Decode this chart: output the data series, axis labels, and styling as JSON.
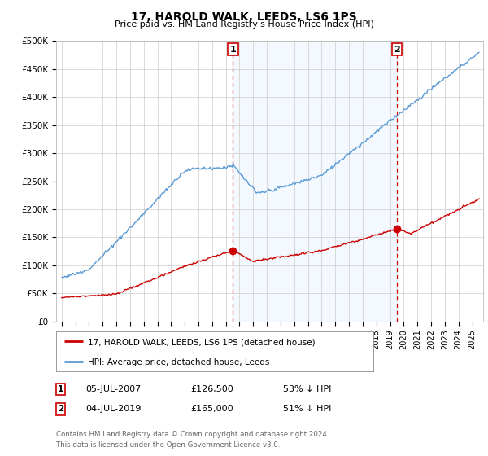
{
  "title": "17, HAROLD WALK, LEEDS, LS6 1PS",
  "subtitle": "Price paid vs. HM Land Registry's House Price Index (HPI)",
  "ylim": [
    0,
    500000
  ],
  "yticks": [
    0,
    50000,
    100000,
    150000,
    200000,
    250000,
    300000,
    350000,
    400000,
    450000,
    500000
  ],
  "ytick_labels": [
    "£0",
    "£50K",
    "£100K",
    "£150K",
    "£200K",
    "£250K",
    "£300K",
    "£350K",
    "£400K",
    "£450K",
    "£500K"
  ],
  "xlim_start": 1994.6,
  "xlim_end": 2025.8,
  "marker1_x": 2007.52,
  "marker1_y": 126500,
  "marker2_x": 2019.51,
  "marker2_y": 165000,
  "marker1_label": "1",
  "marker2_label": "2",
  "sale1_date": "05-JUL-2007",
  "sale1_price": "£126,500",
  "sale1_note": "53% ↓ HPI",
  "sale2_date": "04-JUL-2019",
  "sale2_price": "£165,000",
  "sale2_note": "51% ↓ HPI",
  "legend_line1": "17, HAROLD WALK, LEEDS, LS6 1PS (detached house)",
  "legend_line2": "HPI: Average price, detached house, Leeds",
  "footer": "Contains HM Land Registry data © Crown copyright and database right 2024.\nThis data is licensed under the Open Government Licence v3.0.",
  "hpi_color": "#5b9bd5",
  "hpi_fill_color": "#ddeeff",
  "price_color": "#cc0000",
  "marker_color": "#cc0000",
  "grid_color": "#cccccc",
  "background_color": "#ffffff",
  "shaded_region_alpha": 0.35
}
